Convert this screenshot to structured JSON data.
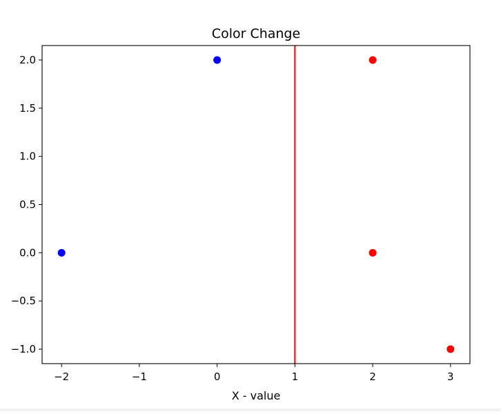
{
  "chart_data": {
    "type": "scatter",
    "title": "Color Change",
    "xlabel": "X - value",
    "ylabel": "",
    "xlim": [
      -2.25,
      3.25
    ],
    "ylim": [
      -1.15,
      2.15
    ],
    "xticks": [
      -2,
      -1,
      0,
      1,
      2,
      3
    ],
    "xtick_labels": [
      "−2",
      "−1",
      "0",
      "1",
      "2",
      "3"
    ],
    "yticks": [
      -1.0,
      -0.5,
      0.0,
      0.5,
      1.0,
      1.5,
      2.0
    ],
    "ytick_labels": [
      "−1.0",
      "−0.5",
      "0.0",
      "0.5",
      "1.0",
      "1.5",
      "2.0"
    ],
    "grid": false,
    "legend": "none",
    "points": [
      {
        "x": -2,
        "y": 0,
        "color": "#0000ff"
      },
      {
        "x": 0,
        "y": 2,
        "color": "#0000ff"
      },
      {
        "x": 2,
        "y": 2,
        "color": "#ff0000"
      },
      {
        "x": 2,
        "y": 0,
        "color": "#ff0000"
      },
      {
        "x": 3,
        "y": -1,
        "color": "#ff0000"
      }
    ],
    "vlines": [
      {
        "x": 1,
        "color": "#e31a1c"
      }
    ]
  }
}
